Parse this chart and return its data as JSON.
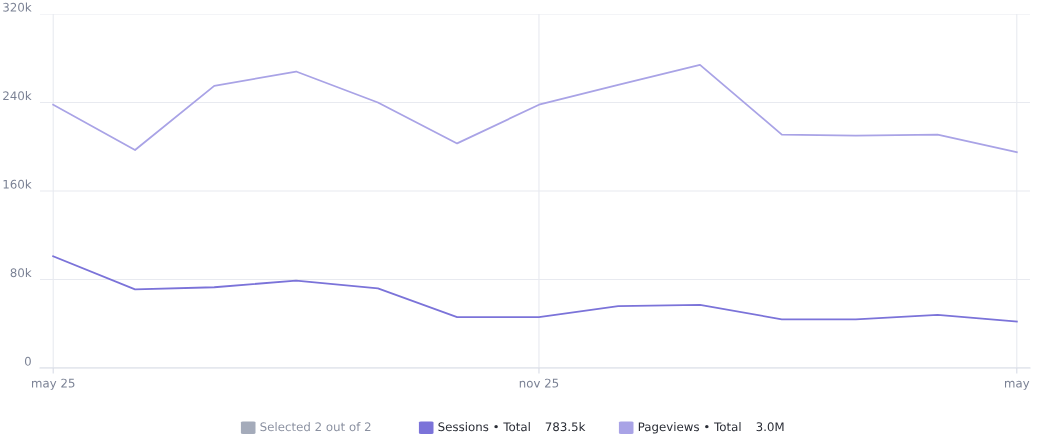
{
  "chart_data": {
    "type": "line",
    "x": [
      "2025-05-01",
      "2025-06-01",
      "2025-07-01",
      "2025-08-01",
      "2025-09-01",
      "2025-10-01",
      "2025-11-01",
      "2025-12-01",
      "2026-01-01",
      "2026-02-01",
      "2026-03-01",
      "2026-04-01",
      "2026-05-01"
    ],
    "series": [
      {
        "name": "Sessions • Total",
        "color": "#7b73d9",
        "values": [
          101000,
          71000,
          73000,
          79000,
          72000,
          46000,
          46000,
          56000,
          57000,
          44000,
          44000,
          48000,
          42000
        ]
      },
      {
        "name": "Pageviews • Total",
        "color": "#a9a3e6",
        "values": [
          238000,
          197000,
          255000,
          268000,
          240000,
          203000,
          238000,
          256000,
          274000,
          211000,
          210000,
          211000,
          195000
        ]
      }
    ],
    "xlim": [
      "2025-04-26",
      "2026-05-06"
    ],
    "xticks": [
      {
        "value": "2025-05-01",
        "label": "may 25"
      },
      {
        "value": "2025-11-01",
        "label": "nov 25"
      },
      {
        "value": "2026-05-01",
        "label": "may"
      }
    ],
    "ylim": [
      0,
      320000
    ],
    "yticks": [
      0,
      {
        "value": 80000,
        "label": "80k"
      },
      {
        "value": 160000,
        "label": "160k"
      },
      {
        "value": 240000,
        "label": "240k"
      },
      {
        "value": 320000,
        "label": "320k"
      }
    ],
    "grid": true,
    "legend": "bottom",
    "marker": "none",
    "line_style": "solid",
    "annotations": [
      "Selected 2 out of 2",
      "783.5k",
      "3.0M"
    ]
  }
}
